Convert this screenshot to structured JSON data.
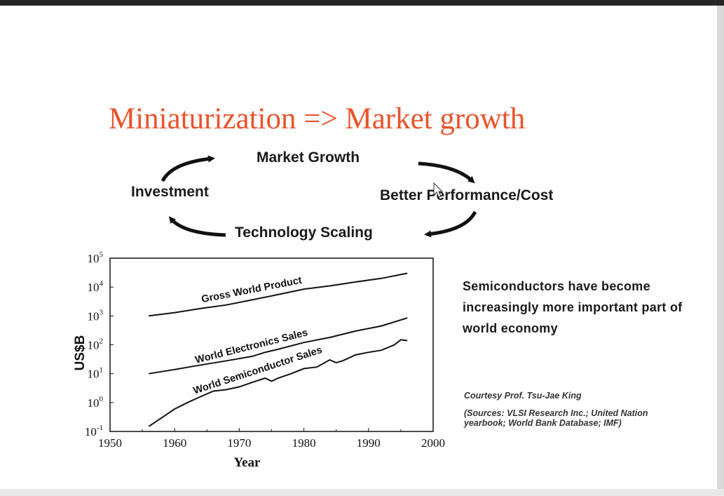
{
  "slide": {
    "title": "Miniaturization => Market growth",
    "colors": {
      "title": "#e8532c",
      "text": "#1a1a1a",
      "line": "#111111"
    }
  },
  "cycle": {
    "market_growth": "Market Growth",
    "better_performance": "Better Performance/Cost",
    "technology_scaling": "Technology Scaling",
    "investment": "Investment",
    "arrow_icon": "curved-arrow-icon"
  },
  "chart_data": {
    "type": "line",
    "title": "",
    "xlabel": "Year",
    "ylabel": "US$B",
    "xlim": [
      1950,
      2000
    ],
    "ylim": [
      0.1,
      100000
    ],
    "yscale": "log",
    "grid": false,
    "legend": "none",
    "x_ticks": [
      "1950",
      "1960",
      "1970",
      "1980",
      "1990",
      "2000"
    ],
    "y_ticks": [
      {
        "base": "10",
        "exp": "-1"
      },
      {
        "base": "10",
        "exp": "0"
      },
      {
        "base": "10",
        "exp": "1"
      },
      {
        "base": "10",
        "exp": "2"
      },
      {
        "base": "10",
        "exp": "3"
      },
      {
        "base": "10",
        "exp": "4"
      },
      {
        "base": "10",
        "exp": "5"
      }
    ],
    "series": [
      {
        "name": "Gross World Product",
        "points": [
          [
            1956,
            1000
          ],
          [
            1960,
            1300
          ],
          [
            1964,
            1800
          ],
          [
            1968,
            2400
          ],
          [
            1972,
            3600
          ],
          [
            1976,
            5500
          ],
          [
            1980,
            8500
          ],
          [
            1984,
            11000
          ],
          [
            1988,
            15000
          ],
          [
            1992,
            20000
          ],
          [
            1996,
            30000
          ]
        ]
      },
      {
        "name": "World Electronics Sales",
        "points": [
          [
            1956,
            10
          ],
          [
            1960,
            14
          ],
          [
            1964,
            20
          ],
          [
            1968,
            28
          ],
          [
            1972,
            40
          ],
          [
            1974,
            55
          ],
          [
            1976,
            70
          ],
          [
            1980,
            120
          ],
          [
            1984,
            180
          ],
          [
            1988,
            300
          ],
          [
            1992,
            450
          ],
          [
            1996,
            850
          ]
        ]
      },
      {
        "name": "World Semiconductor Sales",
        "points": [
          [
            1956,
            0.15
          ],
          [
            1958,
            0.3
          ],
          [
            1960,
            0.6
          ],
          [
            1962,
            1.0
          ],
          [
            1964,
            1.6
          ],
          [
            1966,
            2.5
          ],
          [
            1968,
            2.8
          ],
          [
            1970,
            3.5
          ],
          [
            1972,
            5
          ],
          [
            1974,
            7
          ],
          [
            1975,
            5.5
          ],
          [
            1976,
            7
          ],
          [
            1978,
            10
          ],
          [
            1980,
            15
          ],
          [
            1982,
            17
          ],
          [
            1984,
            30
          ],
          [
            1985,
            24
          ],
          [
            1986,
            28
          ],
          [
            1988,
            45
          ],
          [
            1990,
            55
          ],
          [
            1992,
            65
          ],
          [
            1994,
            100
          ],
          [
            1995,
            150
          ],
          [
            1996,
            140
          ]
        ]
      }
    ]
  },
  "side": {
    "text": "Semiconductors have become increasingly more important part of world economy",
    "courtesy": "Courtesy Prof. Tsu-Jae King",
    "sources": "(Sources: VLSI Research Inc.; United Nation yearbook; World Bank Database; IMF)"
  },
  "cursor": {
    "icon": "mouse-cursor-icon"
  }
}
